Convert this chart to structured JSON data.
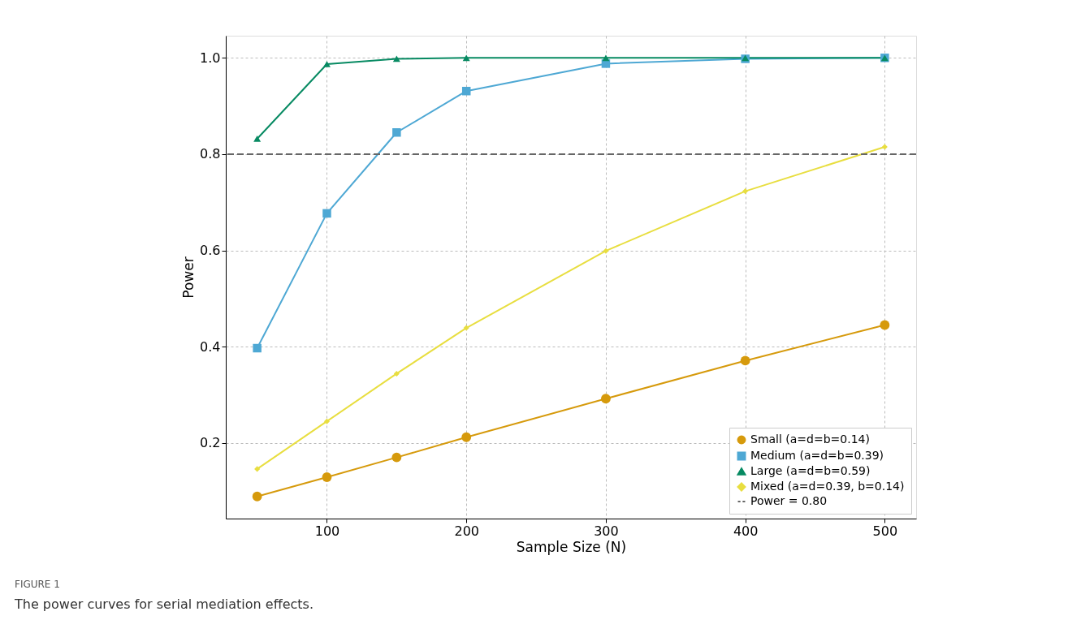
{
  "chart_data": {
    "type": "line",
    "xlabel": "Sample Size (N)",
    "ylabel": "Power",
    "x": [
      50,
      100,
      150,
      200,
      300,
      400,
      500
    ],
    "series": [
      {
        "name": "Small (a=d=b=0.14)",
        "color": "#d69a0c",
        "marker": "circle",
        "values": [
          0.089,
          0.129,
          0.17,
          0.212,
          0.292,
          0.371,
          0.445
        ]
      },
      {
        "name": "Medium (a=d=b=0.39)",
        "color": "#4ea8d4",
        "marker": "square",
        "values": [
          0.397,
          0.677,
          0.845,
          0.931,
          0.988,
          0.998,
          1.0
        ]
      },
      {
        "name": "Large (a=d=b=0.59)",
        "color": "#078a62",
        "marker": "triangle",
        "values": [
          0.832,
          0.987,
          0.998,
          1.0,
          1.0,
          1.0,
          1.0
        ]
      },
      {
        "name": "Mixed (a=d=0.39, b=0.14)",
        "color": "#e8de40",
        "marker": "diamond",
        "values": [
          0.146,
          0.245,
          0.344,
          0.439,
          0.599,
          0.723,
          0.815
        ]
      }
    ],
    "ref_lines": [
      {
        "axis": "y",
        "value": 0.8,
        "label": "Power = 0.80",
        "color": "#666666",
        "line_style": "dashed"
      }
    ],
    "xlim": [
      27.5,
      522.5
    ],
    "xticks": [
      100,
      200,
      300,
      400,
      500
    ],
    "ylim": [
      0.043,
      1.046
    ],
    "yticks": [
      0.2,
      0.4,
      0.6,
      0.8,
      {
        "value": 1,
        "label": "1.0"
      }
    ],
    "grid": true,
    "legend": "bottom right",
    "line_style": "solid",
    "annotations": [
      "FIGURE 1",
      "The power curves for serial mediation effects."
    ]
  }
}
